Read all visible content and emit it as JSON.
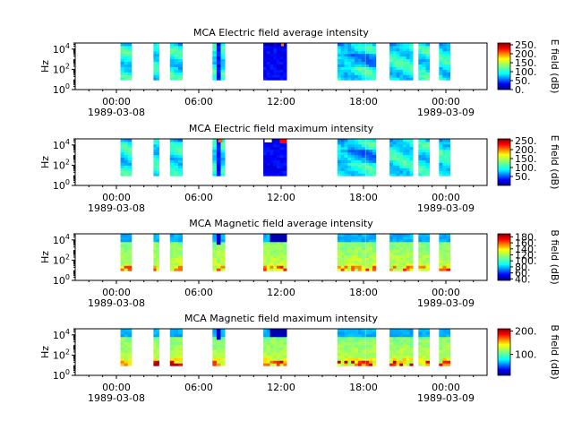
{
  "chart_data": [
    {
      "type": "heatmap",
      "title": "MCA  Electric field average intensity",
      "ylabel": "Hz",
      "colorbar": {
        "label": "E field (dB)",
        "ticks": [
          0,
          50,
          100,
          150,
          200,
          250
        ],
        "tick_labels": [
          "0.",
          "50.",
          "100.",
          "150.",
          "200.",
          "250."
        ],
        "range": [
          0,
          260
        ]
      },
      "field": "E",
      "stat": "average"
    },
    {
      "type": "heatmap",
      "title": "MCA  Electric field maximum intensity",
      "ylabel": "Hz",
      "colorbar": {
        "label": "E field (dB)",
        "ticks": [
          50,
          100,
          150,
          200,
          250
        ],
        "tick_labels": [
          "50.",
          "100.",
          "150.",
          "200.",
          "250."
        ],
        "range": [
          0,
          260
        ]
      },
      "field": "E",
      "stat": "maximum"
    },
    {
      "type": "heatmap",
      "title": "MCA  Magnetic field average intensity",
      "ylabel": "Hz",
      "colorbar": {
        "label": "B field (dB)",
        "ticks": [
          40,
          60,
          80,
          100,
          120,
          140,
          160,
          180
        ],
        "tick_labels": [
          "40.",
          "60.",
          "80.",
          "100.",
          "120.",
          "140.",
          "160.",
          "180."
        ],
        "range": [
          35,
          190
        ]
      },
      "field": "B",
      "stat": "average"
    },
    {
      "type": "heatmap",
      "title": "MCA  Magnetic field maximum intensity",
      "ylabel": "Hz",
      "colorbar": {
        "label": "B field (dB)",
        "ticks": [
          100,
          200
        ],
        "tick_labels": [
          "100.",
          "200."
        ],
        "range": [
          10,
          210
        ]
      },
      "field": "B",
      "stat": "maximum"
    }
  ],
  "shared_axes": {
    "y_scale": "log",
    "y_ticks": [
      {
        "base": "10",
        "exp": "0"
      },
      {
        "base": "10",
        "exp": "2"
      },
      {
        "base": "10",
        "exp": "4"
      }
    ],
    "y_range_hz": [
      1,
      40000
    ],
    "x_range_hours": [
      -3,
      27
    ],
    "x_ticks": [
      {
        "hour": 0,
        "time": "00:00",
        "date": "1989-03-08"
      },
      {
        "hour": 6,
        "time": "06:00",
        "date": ""
      },
      {
        "hour": 12,
        "time": "12:00",
        "date": ""
      },
      {
        "hour": 18,
        "time": "18:00",
        "date": ""
      },
      {
        "hour": 24,
        "time": "00:00",
        "date": "1989-03-09"
      }
    ],
    "data_segments_hours": [
      [
        0.3,
        1.1
      ],
      [
        2.7,
        3.1
      ],
      [
        3.9,
        4.8
      ],
      [
        7.0,
        7.9
      ],
      [
        10.7,
        12.4
      ],
      [
        16.1,
        18.1
      ],
      [
        18.15,
        18.9
      ],
      [
        19.9,
        21.6
      ],
      [
        22.0,
        22.8
      ],
      [
        23.5,
        24.3
      ]
    ]
  }
}
